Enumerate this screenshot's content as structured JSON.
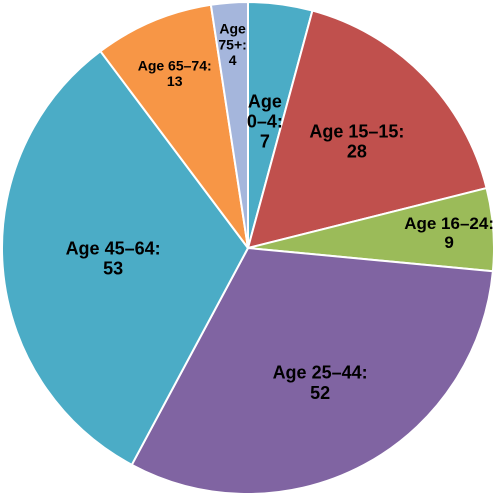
{
  "chart_data": {
    "type": "pie",
    "title": "",
    "slices": [
      {
        "label": "Age 0–4:",
        "value": 7,
        "value_text": "7",
        "color": "#4bacc6"
      },
      {
        "label": "Age 15–15:",
        "value": 28,
        "value_text": "28",
        "color": "#c0504d"
      },
      {
        "label": "Age 16–24:",
        "value": 9,
        "value_text": "9",
        "color": "#9bbb59"
      },
      {
        "label": "Age 25–44:",
        "value": 52,
        "value_text": "52",
        "color": "#8064a2"
      },
      {
        "label": "Age 45–64:",
        "value": 53,
        "value_text": "53",
        "color": "#4bacc6"
      },
      {
        "label": "Age 65–74:",
        "value": 13,
        "value_text": "13",
        "color": "#f79646"
      },
      {
        "label": "Age 75+:",
        "value": 4,
        "value_text": "4",
        "color": "#a5b6dc"
      }
    ]
  }
}
